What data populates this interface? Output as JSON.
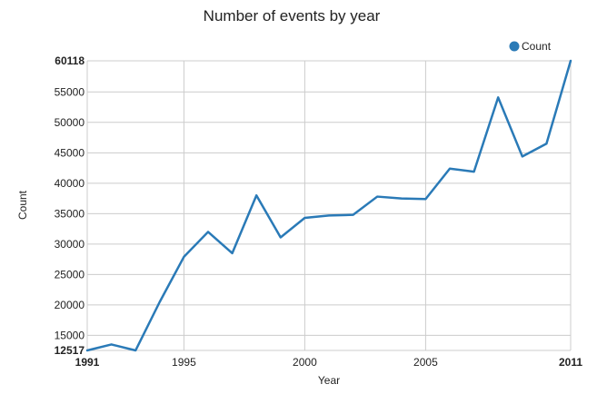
{
  "chart_data": {
    "type": "line",
    "title": "Number of events by year",
    "xlabel": "Year",
    "ylabel": "Count",
    "legend": {
      "position": "top-right",
      "entries": [
        {
          "label": "Count",
          "color": "#2a7ab7"
        }
      ]
    },
    "xlim": [
      1991,
      2011
    ],
    "ylim": [
      12517,
      60118
    ],
    "grid": true,
    "x": [
      1991,
      1992,
      1993,
      1994,
      1995,
      1996,
      1997,
      1998,
      1999,
      2000,
      2001,
      2002,
      2003,
      2004,
      2005,
      2006,
      2007,
      2008,
      2009,
      2010,
      2011
    ],
    "series": [
      {
        "name": "Count",
        "color": "#2a7ab7",
        "values": [
          12517,
          13500,
          12517,
          20500,
          27900,
          32000,
          28500,
          38000,
          31100,
          34300,
          34700,
          34800,
          37800,
          37500,
          37400,
          42400,
          41900,
          54100,
          44400,
          46500,
          60118
        ]
      }
    ],
    "x_ticks": [
      {
        "value": 1991,
        "label": "1991",
        "bold": true
      },
      {
        "value": 1995,
        "label": "1995",
        "bold": false
      },
      {
        "value": 2000,
        "label": "2000",
        "bold": false
      },
      {
        "value": 2005,
        "label": "2005",
        "bold": false
      },
      {
        "value": 2011,
        "label": "2011",
        "bold": true
      }
    ],
    "y_ticks": [
      {
        "value": 12517,
        "label": "12517",
        "bold": true
      },
      {
        "value": 15000,
        "label": "15000",
        "bold": false
      },
      {
        "value": 20000,
        "label": "20000",
        "bold": false
      },
      {
        "value": 25000,
        "label": "25000",
        "bold": false
      },
      {
        "value": 30000,
        "label": "30000",
        "bold": false
      },
      {
        "value": 35000,
        "label": "35000",
        "bold": false
      },
      {
        "value": 40000,
        "label": "40000",
        "bold": false
      },
      {
        "value": 45000,
        "label": "45000",
        "bold": false
      },
      {
        "value": 50000,
        "label": "50000",
        "bold": false
      },
      {
        "value": 55000,
        "label": "55000",
        "bold": false
      },
      {
        "value": 60118,
        "label": "60118",
        "bold": true
      }
    ],
    "colors": {
      "line": "#2a7ab7",
      "grid": "#cccccc",
      "text": "#222222"
    }
  }
}
